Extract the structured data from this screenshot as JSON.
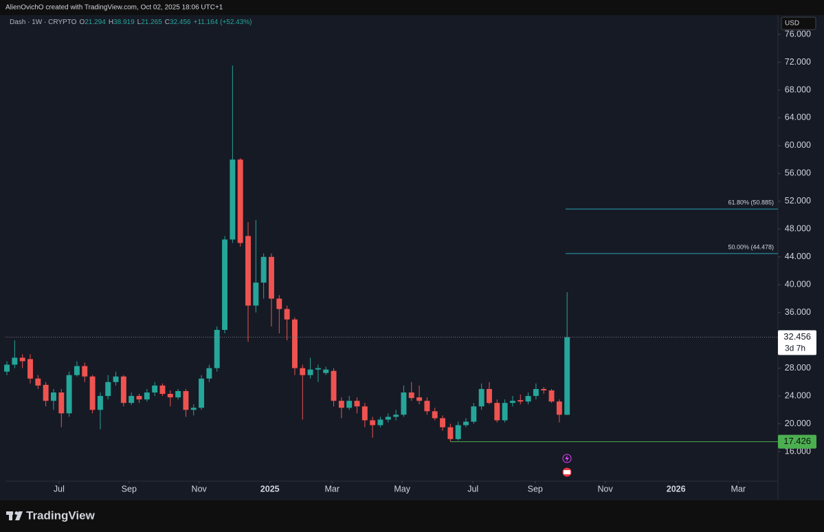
{
  "header": "AlienOvichO created with TradingView.com, Oct 02, 2025 18:06 UTC+1",
  "footer": "TradingView",
  "chart_data": {
    "type": "candlestick",
    "symbol": "Dash · 1W · CRYPTO",
    "legend_items": [
      "O",
      "21.294",
      "H",
      "38.919",
      "L",
      "21.265",
      "C",
      "32.456",
      "+11.164 (+52.43%)"
    ],
    "currency": "USD",
    "up_color": "#26a69a",
    "down_color": "#ef5350",
    "open": [
      27.5,
      28.5,
      29.5,
      29.3,
      26.5,
      25.6,
      23.3,
      24.5,
      21.5,
      27,
      28.3,
      26.8,
      22,
      24,
      26,
      26.8,
      23,
      24,
      23.5,
      24.5,
      25.5,
      24.3,
      23.8,
      24.7,
      22,
      22.3,
      26.5,
      28,
      33.5,
      46.5,
      58,
      47,
      37,
      40.3,
      44,
      38,
      36.5,
      35,
      28,
      27,
      27.8,
      27.3,
      27.6,
      23.3,
      22.3,
      23.3,
      22.5,
      20.5,
      19.8,
      20.6,
      21,
      21.3,
      24.5,
      23.8,
      23.3,
      21.8,
      20.8,
      19.5,
      17.8,
      19.8,
      20.3,
      22.5,
      25,
      23,
      20.5,
      23,
      23.4,
      23.2,
      24,
      25,
      24.8,
      23.2,
      21.294
    ],
    "high": [
      29,
      32,
      30,
      30,
      27,
      26,
      25,
      25,
      27.5,
      29,
      28.8,
      27,
      24.5,
      27,
      27.5,
      27,
      24.5,
      24.3,
      25,
      26,
      25.8,
      24.8,
      25,
      25,
      22.8,
      27,
      28.5,
      34,
      47,
      71.5,
      58.2,
      49,
      49.3,
      44.5,
      44.5,
      38.5,
      37,
      35.3,
      28.5,
      29.5,
      28.5,
      28.2,
      28,
      23.8,
      24,
      23.8,
      23,
      21,
      21,
      21.5,
      22,
      25.5,
      26,
      25.5,
      23.8,
      22.3,
      21.2,
      20,
      20.3,
      20.8,
      23,
      25.8,
      26,
      23.5,
      23.5,
      24,
      24.2,
      24.5,
      25.8,
      25.3,
      25,
      23.5,
      38.919
    ],
    "low": [
      27,
      28,
      28,
      25.8,
      25,
      22.5,
      22,
      19.5,
      21,
      26.8,
      26,
      21.5,
      19.2,
      23.5,
      25.5,
      22.5,
      22.7,
      23,
      23.2,
      24,
      24,
      22.5,
      23.5,
      21,
      21.2,
      22,
      26,
      27.5,
      33,
      46,
      45.5,
      31.8,
      36,
      38,
      34,
      33,
      32,
      27,
      20.6,
      26.5,
      26,
      27,
      22.5,
      20.8,
      22,
      21.5,
      19.5,
      18,
      19.5,
      20.2,
      20.5,
      21,
      23.3,
      22.8,
      21.3,
      20.5,
      19,
      17.4,
      17.6,
      19.5,
      20,
      22,
      22.8,
      20.2,
      20.2,
      22.5,
      22.8,
      22.8,
      23.5,
      24.3,
      23,
      20.2,
      21.265
    ],
    "close": [
      28.5,
      29.5,
      29,
      26.5,
      25.5,
      23.3,
      24.5,
      21.5,
      27,
      28.3,
      26.8,
      22,
      24,
      26,
      26.8,
      23,
      24,
      23.5,
      24.5,
      25.5,
      24.3,
      23.8,
      24.7,
      22,
      22.3,
      26.5,
      28,
      33.5,
      46.5,
      58,
      46,
      37,
      40.3,
      44,
      38,
      36.5,
      35,
      28,
      27,
      27.8,
      28,
      27.8,
      23.3,
      22.3,
      23.3,
      22.5,
      20.5,
      19.8,
      20.6,
      21,
      21.3,
      24.5,
      23.7,
      23.3,
      21.8,
      20.8,
      19.5,
      17.8,
      19.8,
      20.3,
      22.5,
      25,
      23,
      20.5,
      23,
      23.3,
      23.2,
      24,
      25,
      24.8,
      23.2,
      21.3,
      32.456
    ],
    "xlim": [
      -0.18,
      99.1
    ],
    "xticks": [
      {
        "value": 6.7,
        "label": "Jul"
      },
      {
        "value": 15.7,
        "label": "Sep"
      },
      {
        "value": 24.7,
        "label": "Nov"
      },
      {
        "value": 33.8,
        "label": "2025"
      },
      {
        "value": 41.8,
        "label": "Mar"
      },
      {
        "value": 50.8,
        "label": "May"
      },
      {
        "value": 59.9,
        "label": "Jul"
      },
      {
        "value": 67.9,
        "label": "Sep"
      },
      {
        "value": 76.9,
        "label": "Nov"
      },
      {
        "value": 86.0,
        "label": "2026"
      },
      {
        "value": 94.0,
        "label": "Mar"
      }
    ],
    "ylim": [
      11.75,
      78.77
    ],
    "yticks": [
      {
        "value": 16,
        "label": "16.000"
      },
      {
        "value": 20,
        "label": "20.000"
      },
      {
        "value": 24,
        "label": "24.000"
      },
      {
        "value": 28,
        "label": "28.000"
      },
      {
        "value": 32,
        "label": "32.000"
      },
      {
        "value": 36,
        "label": "36.000"
      },
      {
        "value": 40,
        "label": "40.000"
      },
      {
        "value": 44,
        "label": "44.000"
      },
      {
        "value": 48,
        "label": "48.000"
      },
      {
        "value": 52,
        "label": "52.000"
      },
      {
        "value": 56,
        "label": "56.000"
      },
      {
        "value": 60,
        "label": "60.000"
      },
      {
        "value": 64,
        "label": "64.000"
      },
      {
        "value": 68,
        "label": "68.000"
      },
      {
        "value": 72,
        "label": "72.000"
      },
      {
        "value": 76,
        "label": "76.000"
      }
    ],
    "grid": false,
    "fib_levels": [
      {
        "value": 50.885,
        "label": "61.80% (50.885)"
      },
      {
        "value": 44.478,
        "label": "50.00% (44.478)"
      }
    ],
    "fib_color": "#2aa3b8",
    "support": {
      "value": 17.426,
      "label": "17.426",
      "color": "#4caf50"
    },
    "last_price": {
      "value": 32.456,
      "label": "32.456",
      "countdown": "3d 7h"
    }
  }
}
